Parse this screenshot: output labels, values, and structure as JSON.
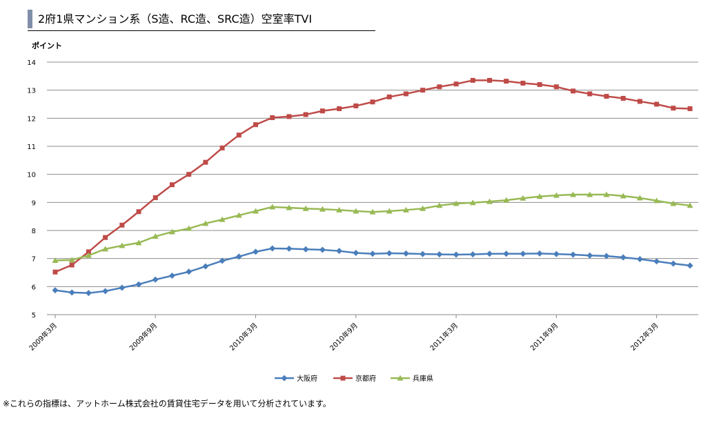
{
  "title": "2府1県マンション系（S造、RC造、SRC造）空室率TVI",
  "note": "※これらの指標は、アットホーム株式会社の賃貸住宅データを用いて分析されています。",
  "chart_data": {
    "type": "line",
    "title": "2府1県マンション系（S造、RC造、SRC造）空室率TVI",
    "ylabel": "ポイント",
    "xlabel": "",
    "ylim": [
      5,
      14
    ],
    "yticks": [
      5,
      6,
      7,
      8,
      9,
      10,
      11,
      12,
      13,
      14
    ],
    "grid": true,
    "legend": "bottom",
    "x": [
      "2009年3月",
      "2009年4月",
      "2009年5月",
      "2009年6月",
      "2009年7月",
      "2009年8月",
      "2009年9月",
      "2009年10月",
      "2009年11月",
      "2009年12月",
      "2010年1月",
      "2010年2月",
      "2010年3月",
      "2010年4月",
      "2010年5月",
      "2010年6月",
      "2010年7月",
      "2010年8月",
      "2010年9月",
      "2010年10月",
      "2010年11月",
      "2010年12月",
      "2011年1月",
      "2011年2月",
      "2011年3月",
      "2011年4月",
      "2011年5月",
      "2011年6月",
      "2011年7月",
      "2011年8月",
      "2011年9月",
      "2011年10月",
      "2011年11月",
      "2011年12月",
      "2012年1月",
      "2012年2月",
      "2012年3月",
      "2012年4月",
      "2012年5月"
    ],
    "xtick_labels": [
      "2009年3月",
      "2009年9月",
      "2010年3月",
      "2010年9月",
      "2011年3月",
      "2011年9月",
      "2012年3月"
    ],
    "xtick_indices": [
      0,
      6,
      12,
      18,
      24,
      30,
      36
    ],
    "series": [
      {
        "name": "大阪府",
        "color": "#4a7ebb",
        "marker": "diamond",
        "values": [
          5.87,
          5.79,
          5.77,
          5.84,
          5.96,
          6.08,
          6.25,
          6.39,
          6.53,
          6.72,
          6.92,
          7.07,
          7.24,
          7.36,
          7.35,
          7.33,
          7.31,
          7.27,
          7.2,
          7.17,
          7.19,
          7.18,
          7.16,
          7.15,
          7.14,
          7.15,
          7.17,
          7.17,
          7.17,
          7.18,
          7.16,
          7.14,
          7.11,
          7.09,
          7.04,
          6.98,
          6.9,
          6.82,
          6.75
        ]
      },
      {
        "name": "京都府",
        "color": "#be4b48",
        "marker": "square",
        "values": [
          6.52,
          6.77,
          7.24,
          7.75,
          8.19,
          8.67,
          9.17,
          9.63,
          10.0,
          10.43,
          10.94,
          11.4,
          11.77,
          12.02,
          12.06,
          12.13,
          12.26,
          12.34,
          12.44,
          12.58,
          12.76,
          12.87,
          13.0,
          13.12,
          13.22,
          13.35,
          13.35,
          13.32,
          13.25,
          13.2,
          13.12,
          12.97,
          12.87,
          12.78,
          12.71,
          12.6,
          12.5,
          12.36,
          12.34
        ]
      },
      {
        "name": "兵庫県",
        "color": "#98b954",
        "marker": "triangle",
        "values": [
          6.93,
          6.95,
          7.11,
          7.34,
          7.46,
          7.56,
          7.79,
          7.95,
          8.07,
          8.25,
          8.39,
          8.54,
          8.69,
          8.84,
          8.81,
          8.78,
          8.76,
          8.73,
          8.69,
          8.66,
          8.69,
          8.73,
          8.78,
          8.89,
          8.96,
          8.99,
          9.03,
          9.08,
          9.15,
          9.21,
          9.25,
          9.28,
          9.28,
          9.28,
          9.23,
          9.16,
          9.06,
          8.96,
          8.89
        ]
      }
    ]
  }
}
